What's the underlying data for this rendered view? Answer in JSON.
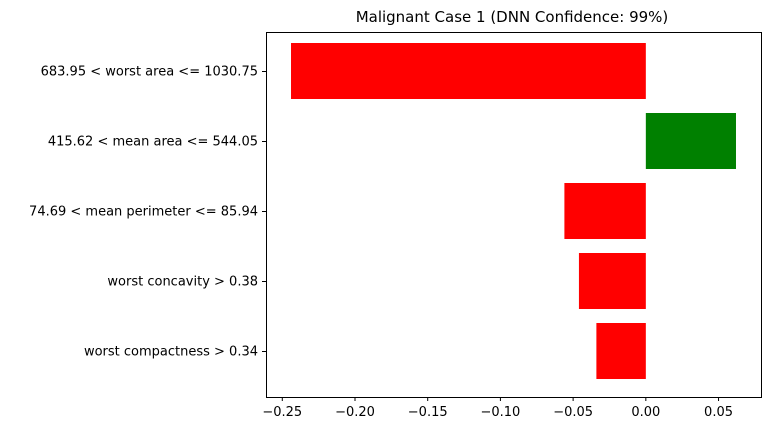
{
  "chart_data": {
    "type": "bar",
    "orientation": "horizontal",
    "title": "Malignant Case 1 (DNN Confidence: 99%)",
    "xlabel": "",
    "ylabel": "",
    "categories": [
      "683.95 < worst area <= 1030.75",
      "415.62 < mean area <= 544.05",
      "74.69 < mean perimeter <= 85.94",
      "worst concavity > 0.38",
      "worst compactness > 0.34"
    ],
    "values": [
      -0.244,
      0.062,
      -0.056,
      -0.046,
      -0.034
    ],
    "bar_colors": [
      "#ff0000",
      "#008000",
      "#ff0000",
      "#ff0000",
      "#ff0000"
    ],
    "xlim": [
      -0.2612,
      0.0792
    ],
    "xticks": [
      -0.25,
      -0.2,
      -0.15,
      -0.1,
      -0.05,
      0.0,
      0.05
    ],
    "xtick_labels": [
      "−0.25",
      "−0.20",
      "−0.15",
      "−0.10",
      "−0.05",
      "0.00",
      "0.05"
    ],
    "grid": false,
    "legend": "none"
  }
}
